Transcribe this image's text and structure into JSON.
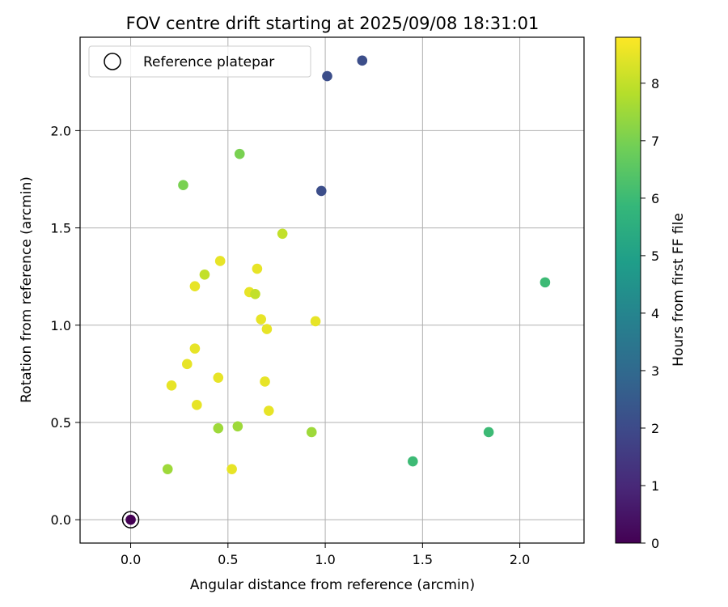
{
  "chart_data": {
    "type": "scatter",
    "title": "FOV centre drift starting at 2025/09/08 18:31:01",
    "xlabel": "Angular distance from reference (arcmin)",
    "ylabel": "Rotation from reference (arcmin)",
    "xlim": [
      -0.26,
      2.33
    ],
    "ylim": [
      -0.12,
      2.48
    ],
    "xticks": [
      0.0,
      0.5,
      1.0,
      1.5,
      2.0
    ],
    "xtick_labels": [
      "0.0",
      "0.5",
      "1.0",
      "1.5",
      "2.0"
    ],
    "yticks": [
      0.0,
      0.5,
      1.0,
      1.5,
      2.0
    ],
    "ytick_labels": [
      "0.0",
      "0.5",
      "1.0",
      "1.5",
      "2.0"
    ],
    "grid": true,
    "legend": {
      "location": "top-left",
      "entries": [
        "Reference platepar"
      ]
    },
    "colorbar": {
      "label": "Hours from first FF file",
      "min": 0,
      "max": 8.8,
      "ticks": [
        0,
        1,
        2,
        3,
        4,
        5,
        6,
        7,
        8
      ],
      "tick_labels": [
        "0",
        "1",
        "2",
        "3",
        "4",
        "5",
        "6",
        "7",
        "8"
      ],
      "colormap": "viridis",
      "colors": [
        "#440154",
        "#482878",
        "#3e4989",
        "#31688e",
        "#26828e",
        "#1f9e89",
        "#35b779",
        "#6ece58",
        "#b5de2b",
        "#fde725"
      ]
    },
    "reference_point": {
      "x": 0.0,
      "y": 0.0,
      "hours": 0.0
    },
    "points": [
      {
        "x": 1.19,
        "y": 2.36,
        "hours": 2.1
      },
      {
        "x": 1.01,
        "y": 2.28,
        "hours": 2.1
      },
      {
        "x": 0.98,
        "y": 1.69,
        "hours": 2.1
      },
      {
        "x": 0.56,
        "y": 1.88,
        "hours": 7.0
      },
      {
        "x": 0.27,
        "y": 1.72,
        "hours": 7.0
      },
      {
        "x": 0.78,
        "y": 1.47,
        "hours": 8.0
      },
      {
        "x": 0.46,
        "y": 1.33,
        "hours": 8.5
      },
      {
        "x": 0.65,
        "y": 1.29,
        "hours": 8.5
      },
      {
        "x": 0.38,
        "y": 1.26,
        "hours": 8.0
      },
      {
        "x": 0.33,
        "y": 1.2,
        "hours": 8.5
      },
      {
        "x": 0.61,
        "y": 1.17,
        "hours": 8.5
      },
      {
        "x": 0.64,
        "y": 1.16,
        "hours": 8.0
      },
      {
        "x": 0.67,
        "y": 1.03,
        "hours": 8.5
      },
      {
        "x": 0.7,
        "y": 0.98,
        "hours": 8.5
      },
      {
        "x": 0.95,
        "y": 1.02,
        "hours": 8.5
      },
      {
        "x": 0.33,
        "y": 0.88,
        "hours": 8.5
      },
      {
        "x": 0.29,
        "y": 0.8,
        "hours": 8.5
      },
      {
        "x": 0.45,
        "y": 0.73,
        "hours": 8.5
      },
      {
        "x": 0.69,
        "y": 0.71,
        "hours": 8.5
      },
      {
        "x": 0.21,
        "y": 0.69,
        "hours": 8.5
      },
      {
        "x": 0.34,
        "y": 0.59,
        "hours": 8.5
      },
      {
        "x": 0.71,
        "y": 0.56,
        "hours": 8.5
      },
      {
        "x": 0.45,
        "y": 0.47,
        "hours": 7.5
      },
      {
        "x": 0.55,
        "y": 0.48,
        "hours": 7.5
      },
      {
        "x": 0.93,
        "y": 0.45,
        "hours": 7.5
      },
      {
        "x": 0.19,
        "y": 0.26,
        "hours": 7.5
      },
      {
        "x": 0.52,
        "y": 0.26,
        "hours": 8.5
      },
      {
        "x": 1.45,
        "y": 0.3,
        "hours": 6.0
      },
      {
        "x": 1.84,
        "y": 0.45,
        "hours": 6.0
      },
      {
        "x": 2.13,
        "y": 1.22,
        "hours": 6.0
      }
    ]
  }
}
